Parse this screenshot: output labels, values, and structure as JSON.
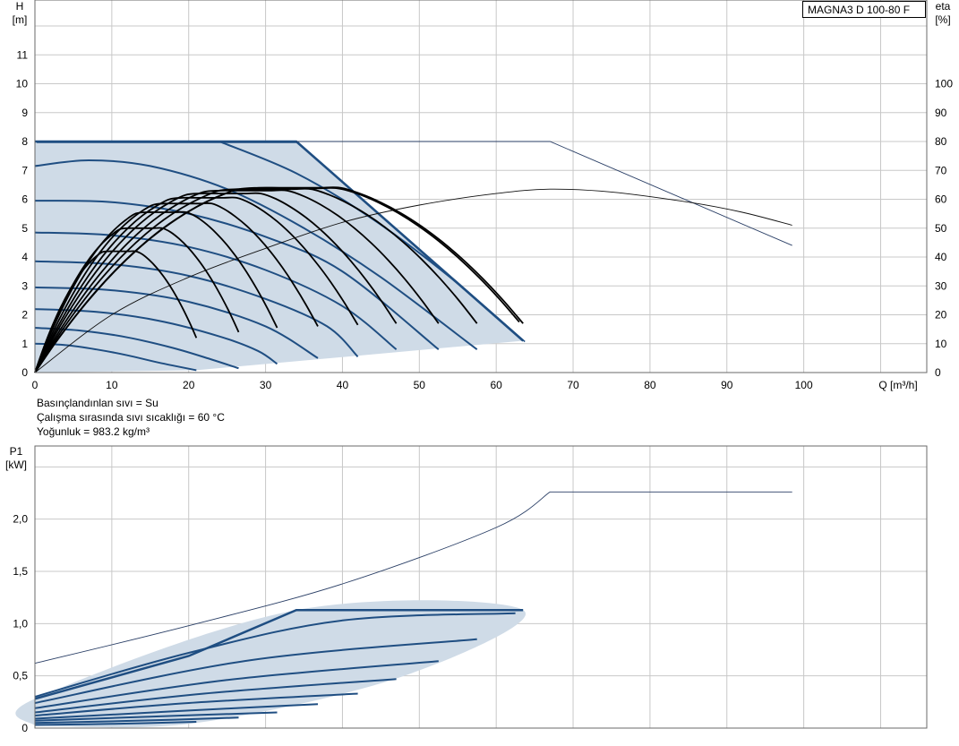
{
  "model_label": "MAGNA3 D 100-80 F",
  "info_lines": [
    "Basınçlandınlan sıvı = Su",
    "Çalışma sırasında sıvı sıcaklığı = 60 °C",
    "Yoğunluk = 983.2 kg/m³"
  ],
  "colors": {
    "curve": "#1f4e82",
    "region": "#cfdbe7",
    "eff": "#000000",
    "grid": "#c8c8c8",
    "thin": "#2a3f66"
  },
  "chart_data": [
    {
      "type": "line",
      "id": "qh",
      "ylabel_top": "H",
      "ylabel_unit": "[m]",
      "y2label_top": "eta",
      "y2label_unit": "[%]",
      "xlabel": "Q [m³/h]",
      "xlim": [
        0,
        116
      ],
      "ylim": [
        0,
        12.9
      ],
      "y2lim": [
        0,
        129
      ],
      "xticks": [
        0,
        10,
        20,
        30,
        40,
        50,
        60,
        70,
        80,
        90,
        100
      ],
      "yticks": [
        0,
        1,
        2,
        3,
        4,
        5,
        6,
        7,
        8,
        9,
        10,
        11
      ],
      "y2ticks": [
        0,
        10,
        20,
        30,
        40,
        50,
        60,
        70,
        80,
        90,
        100
      ],
      "grid": true,
      "region": [
        [
          0,
          0
        ],
        [
          0,
          8
        ],
        [
          34,
          8
        ],
        [
          63.5,
          1.1
        ],
        [
          21,
          0.08
        ],
        [
          0,
          0
        ]
      ],
      "speed_curves": [
        {
          "q": [
            0,
            4,
            8,
            12,
            16,
            21
          ],
          "h": [
            1.0,
            0.95,
            0.8,
            0.6,
            0.35,
            0.08
          ]
        },
        {
          "q": [
            0,
            6,
            12,
            18,
            23,
            26.5
          ],
          "h": [
            1.55,
            1.45,
            1.22,
            0.85,
            0.45,
            0.15
          ]
        },
        {
          "q": [
            0,
            8,
            16,
            24,
            29,
            31.5
          ],
          "h": [
            2.2,
            2.1,
            1.8,
            1.25,
            0.75,
            0.3
          ]
        },
        {
          "q": [
            0,
            10,
            20,
            30,
            36.8
          ],
          "h": [
            2.95,
            2.85,
            2.45,
            1.6,
            0.5
          ]
        },
        {
          "q": [
            0,
            10,
            20,
            30,
            38,
            42
          ],
          "h": [
            3.85,
            3.75,
            3.35,
            2.55,
            1.6,
            0.55
          ]
        },
        {
          "q": [
            0,
            10,
            20,
            30,
            40,
            47
          ],
          "h": [
            4.85,
            4.75,
            4.35,
            3.55,
            2.3,
            0.8
          ]
        },
        {
          "q": [
            0,
            10,
            20,
            30,
            40,
            52.5
          ],
          "h": [
            5.95,
            5.9,
            5.5,
            4.7,
            3.5,
            0.8
          ]
        },
        {
          "q": [
            0,
            7,
            15,
            25,
            35,
            45,
            57.5
          ],
          "h": [
            7.15,
            7.35,
            7.15,
            6.35,
            5.0,
            3.3,
            0.8
          ]
        },
        {
          "q": [
            24,
            34,
            44,
            54,
            63.5
          ],
          "h": [
            8.0,
            6.9,
            5.3,
            3.3,
            1.1
          ]
        }
      ],
      "max_curve": {
        "q": [
          0,
          34,
          63.5
        ],
        "h": [
          8.0,
          8.0,
          1.1
        ]
      },
      "ext_head_curve": {
        "q": [
          34,
          67,
          98.5
        ],
        "h": [
          8.0,
          8.0,
          4.4
        ]
      },
      "ext_eff_curve": {
        "q": [
          0,
          10,
          20,
          30,
          40,
          50,
          60,
          67,
          75,
          85,
          92,
          98.5
        ],
        "eta": [
          0,
          20,
          33,
          43,
          52,
          58,
          62,
          63.5,
          62.5,
          59,
          55.5,
          51
        ]
      },
      "eff_curves": [
        {
          "qmax": 21,
          "peak": 42,
          "endh": 1.2
        },
        {
          "qmax": 26.5,
          "peak": 50,
          "endh": 1.4
        },
        {
          "qmax": 31.5,
          "peak": 55.5,
          "endh": 1.55
        },
        {
          "qmax": 36.8,
          "peak": 58.5,
          "endh": 1.6
        },
        {
          "qmax": 42,
          "peak": 60.5,
          "endh": 1.65
        },
        {
          "qmax": 47,
          "peak": 62,
          "endh": 1.7
        },
        {
          "qmax": 52.5,
          "peak": 63,
          "endh": 1.7
        },
        {
          "qmax": 57.5,
          "peak": 63.5,
          "endh": 1.7
        },
        {
          "qmax": 63,
          "peak": 63.8,
          "endh": 1.75
        },
        {
          "qmax": 63.5,
          "peak": 64,
          "endh": 1.7
        }
      ]
    },
    {
      "type": "line",
      "id": "power",
      "ylabel_top": "P1",
      "ylabel_unit": "[kW]",
      "xlim": [
        0,
        116
      ],
      "ylim": [
        0,
        2.7
      ],
      "yticks": [
        0,
        0.5,
        1.0,
        1.5,
        2.0
      ],
      "ytick_labels": [
        "0",
        "0,5",
        "1,0",
        "1,5",
        "2,0"
      ],
      "xticks": [
        0,
        10,
        20,
        30,
        40,
        50,
        60,
        70,
        80,
        90,
        100
      ],
      "grid": true,
      "region": [
        [
          0,
          0.02
        ],
        [
          0,
          0.28
        ],
        [
          34,
          1.13
        ],
        [
          63.5,
          1.13
        ],
        [
          48,
          0.5
        ],
        [
          21,
          0.05
        ],
        [
          0,
          0.02
        ]
      ],
      "power_curves": [
        {
          "q": [
            0,
            10,
            21
          ],
          "p": [
            0.03,
            0.04,
            0.06
          ]
        },
        {
          "q": [
            0,
            13,
            26.5
          ],
          "p": [
            0.05,
            0.07,
            0.1
          ]
        },
        {
          "q": [
            0,
            15,
            31.5
          ],
          "p": [
            0.07,
            0.11,
            0.15
          ]
        },
        {
          "q": [
            0,
            18,
            36.8
          ],
          "p": [
            0.09,
            0.16,
            0.23
          ]
        },
        {
          "q": [
            0,
            20,
            42
          ],
          "p": [
            0.12,
            0.24,
            0.33
          ]
        },
        {
          "q": [
            0,
            22,
            47
          ],
          "p": [
            0.15,
            0.33,
            0.47
          ]
        },
        {
          "q": [
            0,
            25,
            52.5
          ],
          "p": [
            0.19,
            0.46,
            0.64
          ]
        },
        {
          "q": [
            0,
            28,
            57.5
          ],
          "p": [
            0.24,
            0.65,
            0.85
          ]
        },
        {
          "q": [
            0,
            20,
            40,
            62.5
          ],
          "p": [
            0.3,
            0.72,
            1.03,
            1.1
          ]
        },
        {
          "q": [
            0,
            20,
            34,
            63.5
          ],
          "p": [
            0.28,
            0.69,
            1.13,
            1.13
          ]
        }
      ],
      "ext_power_curve": {
        "q": [
          0,
          20,
          40,
          60,
          67,
          98.5
        ],
        "p": [
          0.62,
          0.98,
          1.38,
          1.92,
          2.26,
          2.26
        ]
      }
    }
  ]
}
